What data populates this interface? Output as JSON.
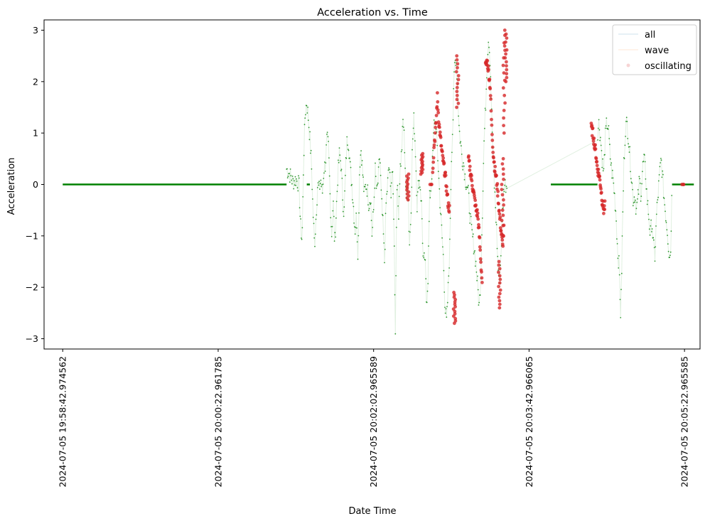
{
  "chart_data": {
    "type": "scatter",
    "title": "Acceleration vs. Time",
    "xlabel": "Date Time",
    "ylabel": "Acceleration",
    "ylim": [
      -3.2,
      3.2
    ],
    "yticks": [
      {
        "value": 3,
        "label": "3"
      },
      {
        "value": 2,
        "label": "2"
      },
      {
        "value": 1,
        "label": "1"
      },
      {
        "value": 0,
        "label": "0"
      },
      {
        "value": -1,
        "label": "−1"
      },
      {
        "value": -2,
        "label": "−2"
      },
      {
        "value": -3,
        "label": "−3"
      }
    ],
    "xlim_seconds": [
      -12,
      410
    ],
    "xticks": [
      {
        "t": 0,
        "label": "2024-07-05 19:58:42.974562"
      },
      {
        "t": 100,
        "label": "2024-07-05 20:00:22.961785"
      },
      {
        "t": 200,
        "label": "2024-07-05 20:02:02.965589"
      },
      {
        "t": 300,
        "label": "2024-07-05 20:03:42.966065"
      },
      {
        "t": 400,
        "label": "2024-07-05 20:05:22.965585"
      }
    ],
    "grid": false,
    "legend_position": "top-right",
    "series_style": [
      {
        "name": "all",
        "color": "#1f77b4",
        "kind": "line"
      },
      {
        "name": "wave",
        "color": "#ff7f0e",
        "kind": "line"
      },
      {
        "name": "oscillating",
        "color": "#d62728",
        "kind": "marker"
      }
    ],
    "base_color": "#008000",
    "osc_color": "#d62728",
    "flat_segments": [
      [
        0,
        144
      ],
      [
        157,
        159
      ],
      [
        314,
        344
      ],
      [
        392,
        406
      ]
    ],
    "signal_keyframes": [
      [
        144,
        0.3
      ],
      [
        146,
        0.2
      ],
      [
        148,
        0.05
      ],
      [
        150,
        0.1
      ],
      [
        152,
        0.0
      ],
      [
        153,
        -0.8
      ],
      [
        154,
        -1.1
      ],
      [
        155,
        0.5
      ],
      [
        156,
        1.4
      ],
      [
        157,
        1.6
      ],
      [
        158,
        1.3
      ],
      [
        159,
        0.9
      ],
      [
        160,
        0.4
      ],
      [
        161,
        -0.5
      ],
      [
        162,
        -1.2
      ],
      [
        163,
        -0.6
      ],
      [
        164,
        0.0
      ],
      [
        165,
        -0.1
      ],
      [
        166,
        0.1
      ],
      [
        167,
        -0.2
      ],
      [
        168,
        0.3
      ],
      [
        169,
        0.4
      ],
      [
        170,
        0.9
      ],
      [
        171,
        0.7
      ],
      [
        172,
        -0.2
      ],
      [
        173,
        -1.0
      ],
      [
        174,
        -0.3
      ],
      [
        175,
        -1.2
      ],
      [
        176,
        -0.5
      ],
      [
        177,
        0.2
      ],
      [
        178,
        0.6
      ],
      [
        179,
        0.4
      ],
      [
        180,
        -0.2
      ],
      [
        181,
        -0.6
      ],
      [
        182,
        0.3
      ],
      [
        183,
        0.9
      ],
      [
        184,
        0.8
      ],
      [
        185,
        0.3
      ],
      [
        186,
        0.0
      ],
      [
        187,
        -0.4
      ],
      [
        188,
        -0.9
      ],
      [
        189,
        -0.6
      ],
      [
        190,
        -1.4
      ],
      [
        191,
        0.4
      ],
      [
        192,
        0.7
      ],
      [
        193,
        0.2
      ],
      [
        194,
        -0.2
      ],
      [
        195,
        0.0
      ],
      [
        196,
        -0.1
      ],
      [
        197,
        -0.4
      ],
      [
        198,
        -0.2
      ],
      [
        199,
        -1.0
      ],
      [
        200,
        -0.5
      ],
      [
        201,
        0.3
      ],
      [
        202,
        -0.2
      ],
      [
        203,
        0.1
      ],
      [
        204,
        0.6
      ],
      [
        205,
        -0.3
      ],
      [
        206,
        -0.8
      ],
      [
        207,
        -1.5
      ],
      [
        208,
        -0.4
      ],
      [
        209,
        0.0
      ],
      [
        210,
        0.4
      ],
      [
        211,
        -0.2
      ],
      [
        212,
        0.3
      ],
      [
        213,
        -0.6
      ],
      [
        214,
        -2.8
      ],
      [
        215,
        0.1
      ],
      [
        216,
        -0.6
      ],
      [
        217,
        0.3
      ],
      [
        218,
        0.6
      ],
      [
        219,
        1.3
      ],
      [
        220,
        0.7
      ],
      [
        221,
        -0.4
      ],
      [
        222,
        0.3
      ],
      [
        223,
        -1.2
      ],
      [
        224,
        -0.6
      ],
      [
        225,
        0.8
      ],
      [
        226,
        1.3
      ],
      [
        227,
        0.6
      ],
      [
        228,
        -0.4
      ],
      [
        229,
        0.1
      ],
      [
        230,
        0.0
      ],
      [
        231,
        -0.5
      ],
      [
        232,
        -1.6
      ],
      [
        233,
        -1.4
      ],
      [
        234,
        -2.3
      ],
      [
        235,
        -1.8
      ],
      [
        236,
        -0.3
      ],
      [
        237,
        0.0
      ],
      [
        238,
        0.5
      ],
      [
        239,
        1.3
      ],
      [
        240,
        1.1
      ],
      [
        241,
        0.7
      ],
      [
        242,
        0.1
      ],
      [
        243,
        -0.5
      ],
      [
        244,
        -1.0
      ],
      [
        245,
        -1.5
      ],
      [
        246,
        -2.4
      ],
      [
        247,
        -2.7
      ],
      [
        248,
        -2.0
      ],
      [
        249,
        -1.2
      ],
      [
        250,
        0.5
      ],
      [
        251,
        1.2
      ],
      [
        252,
        2.3
      ],
      [
        253,
        2.5
      ],
      [
        254,
        1.9
      ],
      [
        255,
        1.1
      ],
      [
        256,
        0.8
      ],
      [
        257,
        0.5
      ],
      [
        258,
        0.4
      ],
      [
        259,
        0.1
      ],
      [
        260,
        0.0
      ],
      [
        261,
        -0.2
      ],
      [
        262,
        -0.6
      ],
      [
        263,
        -0.9
      ],
      [
        264,
        -1.1
      ],
      [
        265,
        -1.3
      ],
      [
        266,
        -1.6
      ],
      [
        267,
        -2.0
      ],
      [
        268,
        -2.4
      ],
      [
        269,
        -1.7
      ],
      [
        270,
        -0.5
      ],
      [
        271,
        0.8
      ],
      [
        272,
        1.5
      ],
      [
        273,
        2.4
      ],
      [
        274,
        2.9
      ],
      [
        275,
        2.4
      ],
      [
        276,
        1.3
      ],
      [
        277,
        0.4
      ],
      [
        278,
        -0.2
      ],
      [
        279,
        -0.8
      ],
      [
        280,
        -1.6
      ],
      [
        281,
        -1.9
      ],
      [
        282,
        -1.3
      ],
      [
        283,
        -0.5
      ],
      [
        284,
        0.0
      ],
      [
        285,
        0.0
      ],
      [
        286,
        0.0
      ],
      [
        344,
        1.0
      ],
      [
        345,
        1.2
      ],
      [
        346,
        0.9
      ],
      [
        347,
        0.5
      ],
      [
        348,
        0.2
      ],
      [
        349,
        0.9
      ],
      [
        350,
        1.2
      ],
      [
        351,
        1.1
      ],
      [
        352,
        0.6
      ],
      [
        353,
        0.3
      ],
      [
        354,
        0.1
      ],
      [
        355,
        -0.2
      ],
      [
        356,
        -0.6
      ],
      [
        357,
        -1.3
      ],
      [
        358,
        -1.6
      ],
      [
        359,
        -2.6
      ],
      [
        360,
        -1.0
      ],
      [
        361,
        0.4
      ],
      [
        362,
        1.1
      ],
      [
        363,
        1.2
      ],
      [
        364,
        0.9
      ],
      [
        365,
        0.5
      ],
      [
        366,
        0.1
      ],
      [
        367,
        -0.3
      ],
      [
        368,
        -0.2
      ],
      [
        369,
        -0.5
      ],
      [
        370,
        -0.3
      ],
      [
        371,
        0.1
      ],
      [
        372,
        -0.2
      ],
      [
        373,
        0.3
      ],
      [
        374,
        0.5
      ],
      [
        375,
        0.2
      ],
      [
        376,
        -0.3
      ],
      [
        377,
        -0.6
      ],
      [
        378,
        -1.0
      ],
      [
        379,
        -0.7
      ],
      [
        380,
        -1.2
      ],
      [
        381,
        -1.4
      ],
      [
        382,
        -0.6
      ],
      [
        383,
        -0.2
      ],
      [
        384,
        0.2
      ],
      [
        385,
        0.5
      ],
      [
        386,
        0.1
      ],
      [
        387,
        -0.3
      ],
      [
        388,
        -0.6
      ],
      [
        389,
        -0.9
      ],
      [
        390,
        -1.3
      ],
      [
        391,
        -1.4
      ],
      [
        392,
        0.0
      ]
    ],
    "oscillating_ranges": [
      [
        240,
        253
      ],
      [
        254,
        270
      ],
      [
        272,
        288
      ],
      [
        340,
        358
      ]
    ],
    "oscillating_keyframes": [
      [
        238,
        0.3
      ],
      [
        239,
        0.8
      ],
      [
        240,
        1.1
      ],
      [
        241,
        1.7
      ],
      [
        242,
        1.2
      ],
      [
        243,
        0.9
      ],
      [
        244,
        0.6
      ],
      [
        245,
        0.4
      ],
      [
        246,
        0.2
      ],
      [
        247,
        -0.1
      ],
      [
        248,
        -0.4
      ],
      [
        249,
        -0.5
      ],
      [
        272,
        2.3
      ],
      [
        273,
        2.4
      ],
      [
        274,
        2.2
      ],
      [
        275,
        1.9
      ],
      [
        276,
        1.1
      ],
      [
        277,
        0.6
      ],
      [
        278,
        0.3
      ],
      [
        279,
        0.1
      ],
      [
        280,
        -0.2
      ],
      [
        281,
        -0.6
      ],
      [
        282,
        -0.9
      ],
      [
        283,
        -1.2
      ],
      [
        284,
        -0.8
      ],
      [
        261,
        0.5
      ],
      [
        262,
        0.3
      ],
      [
        263,
        0.1
      ],
      [
        264,
        -0.1
      ],
      [
        265,
        -0.3
      ],
      [
        266,
        -0.5
      ],
      [
        267,
        -0.6
      ],
      [
        268,
        -1.0
      ],
      [
        269,
        -1.5
      ],
      [
        270,
        -2.0
      ],
      [
        340,
        1.1
      ],
      [
        341,
        1.0
      ],
      [
        342,
        0.8
      ],
      [
        343,
        0.6
      ],
      [
        344,
        0.3
      ],
      [
        345,
        0.2
      ],
      [
        346,
        0.0
      ],
      [
        347,
        -0.3
      ],
      [
        348,
        -0.5
      ],
      [
        349,
        -0.4
      ]
    ],
    "oscillating_clusters": [
      {
        "x": 252,
        "ymin": -2.7,
        "ymax": -2.1
      },
      {
        "x": 254,
        "ymin": 1.5,
        "ymax": 2.5
      },
      {
        "x": 281,
        "ymin": -2.4,
        "ymax": -1.5
      },
      {
        "x": 283,
        "ymin": -0.8,
        "ymax": 0.5
      },
      {
        "x": 284,
        "ymin": 1.0,
        "ymax": 2.9
      },
      {
        "x": 285,
        "ymin": 2.0,
        "ymax": 3.0
      },
      {
        "x": 237,
        "ymin": 0.0,
        "ymax": 0.0
      },
      {
        "x": 222,
        "ymin": -0.3,
        "ymax": 0.2
      },
      {
        "x": 231,
        "ymin": 0.2,
        "ymax": 0.6
      },
      {
        "x": 399,
        "ymin": 0.0,
        "ymax": 0.0
      }
    ]
  }
}
